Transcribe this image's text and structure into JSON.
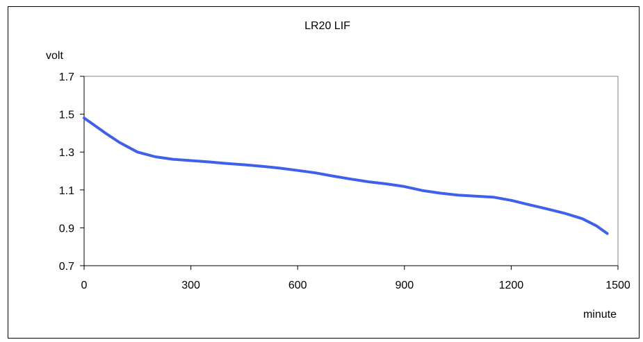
{
  "chart_data": {
    "type": "line",
    "title": "LR20  LIF",
    "xlabel": "minute",
    "ylabel": "volt",
    "xlim": [
      0,
      1500
    ],
    "ylim": [
      0.7,
      1.7
    ],
    "xticks": [
      0,
      300,
      600,
      900,
      1200,
      1500
    ],
    "yticks": [
      0.7,
      0.9,
      1.1,
      1.3,
      1.5,
      1.7
    ],
    "xtick_labels": [
      "0",
      "300",
      "600",
      "900",
      "1200",
      "1500"
    ],
    "ytick_labels": [
      "0.7",
      "0.9",
      "1.1",
      "1.3",
      "1.5",
      "1.7"
    ],
    "grid": false,
    "legend": "none",
    "series": [
      {
        "color": "#3f60ea",
        "x": [
          0,
          30,
          60,
          100,
          150,
          200,
          250,
          300,
          350,
          400,
          450,
          500,
          550,
          600,
          650,
          700,
          750,
          800,
          850,
          900,
          950,
          1000,
          1050,
          1100,
          1150,
          1200,
          1250,
          1300,
          1350,
          1400,
          1440,
          1470
        ],
        "y": [
          1.48,
          1.44,
          1.4,
          1.35,
          1.3,
          1.275,
          1.262,
          1.255,
          1.248,
          1.24,
          1.233,
          1.225,
          1.215,
          1.203,
          1.19,
          1.173,
          1.157,
          1.143,
          1.132,
          1.118,
          1.097,
          1.083,
          1.073,
          1.067,
          1.062,
          1.045,
          1.022,
          1.0,
          0.977,
          0.948,
          0.91,
          0.87
        ]
      }
    ]
  }
}
